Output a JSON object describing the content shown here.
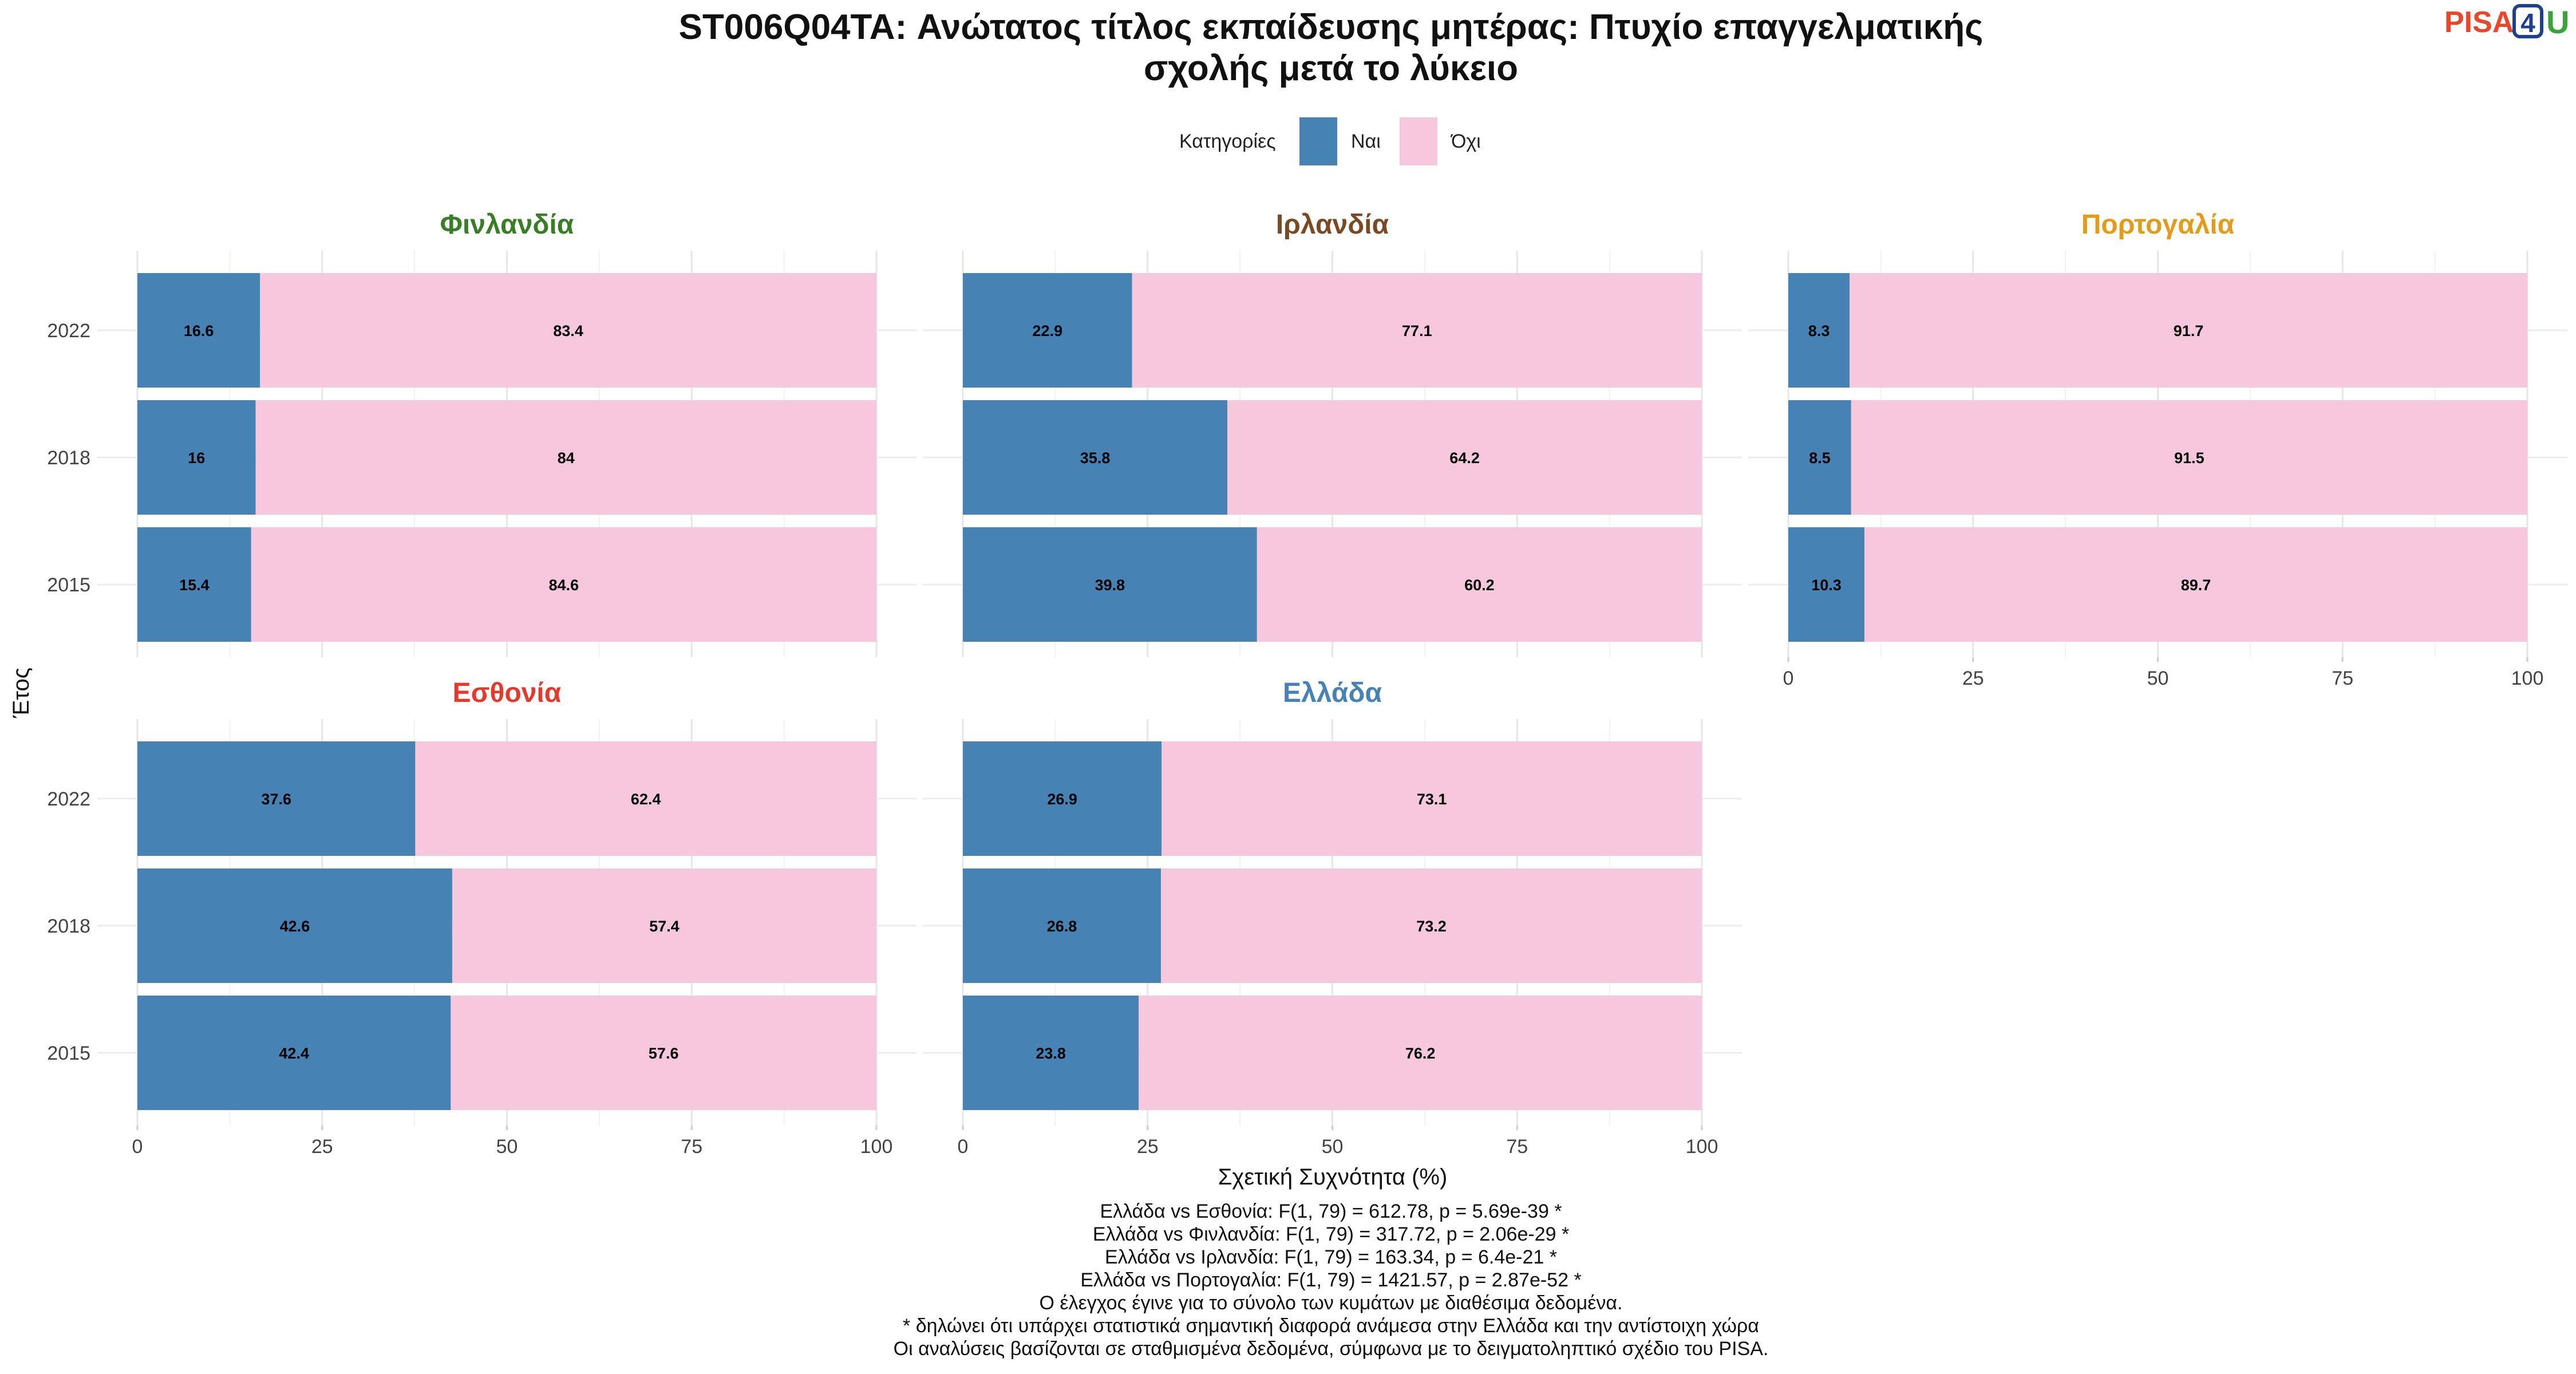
{
  "chart_data": {
    "type": "bar",
    "orientation": "horizontal",
    "stacked": true,
    "title_lines": [
      "ST006Q04TA: Ανώτατος τίτλος εκπαίδευσης μητέρας: Πτυχίο επαγγελματικής",
      "σχολής μετά το λύκειο"
    ],
    "logo_text": {
      "pisa": "PISA",
      "four": "4",
      "u": "U"
    },
    "legend": {
      "title": "Κατηγορίες",
      "position": "top",
      "items": [
        {
          "label": "Ναι",
          "color": "#4682b4"
        },
        {
          "label": "Όχι",
          "color": "#f7c8dd"
        }
      ]
    },
    "xlabel": "Σχετική Συχνότητα (%)",
    "ylabel": "Έτος",
    "xlim": [
      0,
      100
    ],
    "x_ticks": [
      "0",
      "25",
      "50",
      "75",
      "100"
    ],
    "categories": [
      "2022",
      "2018",
      "2015"
    ],
    "grid": true,
    "panels": [
      {
        "name": "Φινλανδία",
        "title_color": "#3a7d27",
        "series": [
          {
            "name": "Ναι",
            "values": [
              16.6,
              16,
              15.4
            ]
          },
          {
            "name": "Όχι",
            "values": [
              83.4,
              84,
              84.6
            ]
          }
        ],
        "label_text": {
          "yes": [
            "16.6",
            "16",
            "15.4"
          ],
          "no": [
            "83.4",
            "84",
            "84.6"
          ]
        }
      },
      {
        "name": "Ιρλανδία",
        "title_color": "#7a4a24",
        "series": [
          {
            "name": "Ναι",
            "values": [
              22.9,
              35.8,
              39.8
            ]
          },
          {
            "name": "Όχι",
            "values": [
              77.1,
              64.2,
              60.2
            ]
          }
        ],
        "label_text": {
          "yes": [
            "22.9",
            "35.8",
            "39.8"
          ],
          "no": [
            "77.1",
            "64.2",
            "60.2"
          ]
        }
      },
      {
        "name": "Πορτογαλία",
        "title_color": "#e39c19",
        "series": [
          {
            "name": "Ναι",
            "values": [
              8.3,
              8.5,
              10.3
            ]
          },
          {
            "name": "Όχι",
            "values": [
              91.7,
              91.5,
              89.7
            ]
          }
        ],
        "label_text": {
          "yes": [
            "8.3",
            "8.5",
            "10.3"
          ],
          "no": [
            "91.7",
            "91.5",
            "89.7"
          ]
        }
      },
      {
        "name": "Εσθονία",
        "title_color": "#e43a2e",
        "series": [
          {
            "name": "Ναι",
            "values": [
              37.6,
              42.6,
              42.4
            ]
          },
          {
            "name": "Όχι",
            "values": [
              62.4,
              57.4,
              57.6
            ]
          }
        ],
        "label_text": {
          "yes": [
            "37.6",
            "42.6",
            "42.4"
          ],
          "no": [
            "62.4",
            "57.4",
            "57.6"
          ]
        }
      },
      {
        "name": "Ελλάδα",
        "title_color": "#4682b4",
        "series": [
          {
            "name": "Ναι",
            "values": [
              26.9,
              26.8,
              23.8
            ]
          },
          {
            "name": "Όχι",
            "values": [
              73.1,
              73.2,
              76.2
            ]
          }
        ],
        "label_text": {
          "yes": [
            "26.9",
            "26.8",
            "23.8"
          ],
          "no": [
            "73.1",
            "73.2",
            "76.2"
          ]
        }
      }
    ],
    "footer_lines": [
      "Ελλάδα vs Εσθονία: F(1, 79) = 612.78, p = 5.69e-39 *",
      "Ελλάδα vs Φινλανδία: F(1, 79) = 317.72, p = 2.06e-29 *",
      "Ελλάδα vs Ιρλανδία: F(1, 79) = 163.34, p = 6.4e-21 *",
      "Ελλάδα vs Πορτογαλία: F(1, 79) = 1421.57, p = 2.87e-52 *",
      "Ο έλεγχος έγινε για το σύνολο των κυμάτων με διαθέσιμα δεδομένα.",
      "* δηλώνει ότι υπάρχει στατιστικά σημαντική διαφορά ανάμεσα στην Ελλάδα και την αντίστοιχη χώρα",
      "Οι αναλύσεις βασίζονται σε σταθμισμένα δεδομένα, σύμφωνα με το δειγματοληπτικό σχέδιο του PISA."
    ]
  }
}
